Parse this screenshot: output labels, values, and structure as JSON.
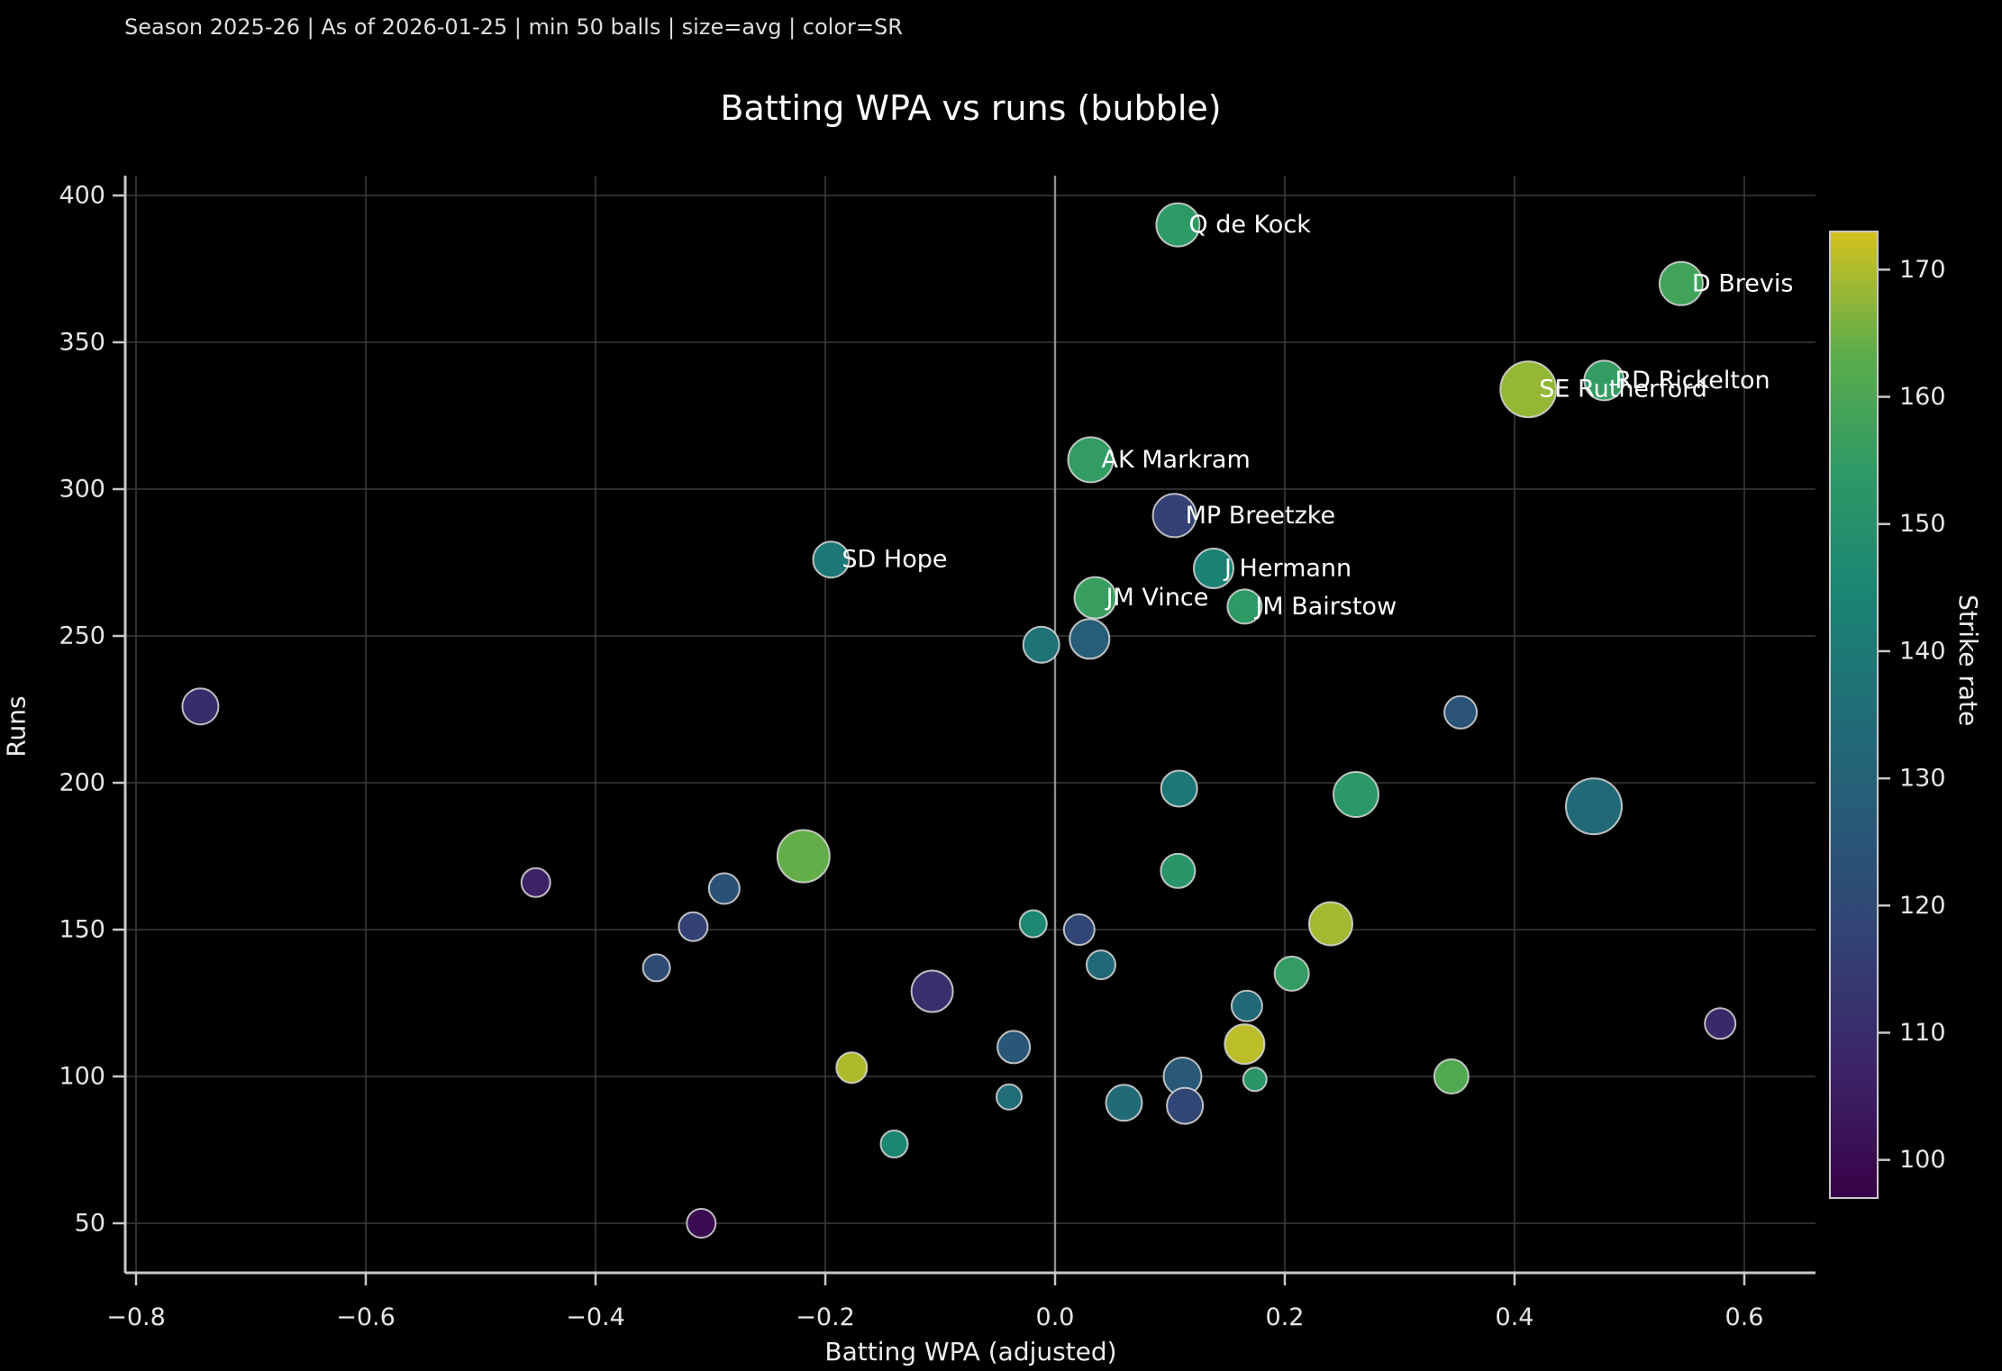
{
  "header": {
    "subtitle": "Season 2025-26 | As of 2026-01-25 | min 50 balls | size=avg | color=SR"
  },
  "chart_data": {
    "type": "scatter",
    "title": "Batting WPA vs runs (bubble)",
    "xlabel": "Batting WPA (adjusted)",
    "ylabel": "Runs",
    "colorbar_label": "Strike rate",
    "legend_position": "right-colorbar",
    "grid": true,
    "xlim": [
      -0.81,
      0.66
    ],
    "ylim": [
      33,
      407
    ],
    "xticks": [
      -0.8,
      -0.6,
      -0.4,
      -0.2,
      0.0,
      0.2,
      0.4,
      0.6
    ],
    "xtick_labels": [
      "−0.8",
      "−0.6",
      "−0.4",
      "−0.2",
      "0.0",
      "0.2",
      "0.4",
      "0.6"
    ],
    "yticks": [
      50,
      100,
      150,
      200,
      250,
      300,
      350,
      400
    ],
    "ytick_labels": [
      "50",
      "100",
      "150",
      "200",
      "250",
      "300",
      "350",
      "400"
    ],
    "color_range": [
      97,
      173
    ],
    "colorbar_ticks": [
      100,
      110,
      120,
      130,
      140,
      150,
      160,
      170
    ],
    "zero_line_x": 0.0,
    "points": [
      {
        "label": "Q de Kock",
        "x": 0.107,
        "y": 390,
        "sr": 154,
        "r": 24
      },
      {
        "label": "D Brevis",
        "x": 0.545,
        "y": 370,
        "sr": 158,
        "r": 24
      },
      {
        "label": "RD Rickelton",
        "x": 0.478,
        "y": 337,
        "sr": 155,
        "r": 22
      },
      {
        "label": "SE Rutherford",
        "x": 0.412,
        "y": 334,
        "sr": 168,
        "r": 31
      },
      {
        "label": "AK Markram",
        "x": 0.031,
        "y": 310,
        "sr": 155,
        "r": 25
      },
      {
        "label": "MP Breetzke",
        "x": 0.104,
        "y": 291,
        "sr": 117,
        "r": 24
      },
      {
        "label": "SD Hope",
        "x": -0.195,
        "y": 276,
        "sr": 139,
        "r": 20
      },
      {
        "label": "J Hermann",
        "x": 0.138,
        "y": 273,
        "sr": 143,
        "r": 22
      },
      {
        "label": "JM Vince",
        "x": 0.035,
        "y": 263,
        "sr": 156,
        "r": 23
      },
      {
        "label": "JM Bairstow",
        "x": 0.165,
        "y": 260,
        "sr": 154,
        "r": 19
      },
      {
        "label": "",
        "x": -0.012,
        "y": 247,
        "sr": 137,
        "r": 20
      },
      {
        "label": "",
        "x": 0.03,
        "y": 249,
        "sr": 128,
        "r": 22
      },
      {
        "label": "",
        "x": 0.108,
        "y": 198,
        "sr": 139,
        "r": 20
      },
      {
        "label": "",
        "x": 0.107,
        "y": 170,
        "sr": 152,
        "r": 19
      },
      {
        "label": "",
        "x": -0.219,
        "y": 175,
        "sr": 164,
        "r": 29
      },
      {
        "label": "",
        "x": -0.744,
        "y": 226,
        "sr": 110,
        "r": 20
      },
      {
        "label": "",
        "x": -0.452,
        "y": 166,
        "sr": 107,
        "r": 16
      },
      {
        "label": "",
        "x": -0.288,
        "y": 164,
        "sr": 123,
        "r": 17
      },
      {
        "label": "",
        "x": -0.315,
        "y": 151,
        "sr": 117,
        "r": 16
      },
      {
        "label": "",
        "x": -0.347,
        "y": 137,
        "sr": 121,
        "r": 15
      },
      {
        "label": "",
        "x": -0.107,
        "y": 129,
        "sr": 111,
        "r": 23
      },
      {
        "label": "",
        "x": -0.177,
        "y": 103,
        "sr": 170,
        "r": 17
      },
      {
        "label": "",
        "x": -0.308,
        "y": 50,
        "sr": 100,
        "r": 16
      },
      {
        "label": "",
        "x": -0.14,
        "y": 77,
        "sr": 145,
        "r": 15
      },
      {
        "label": "",
        "x": -0.036,
        "y": 110,
        "sr": 125,
        "r": 18
      },
      {
        "label": "",
        "x": -0.04,
        "y": 93,
        "sr": 135,
        "r": 14
      },
      {
        "label": "",
        "x": -0.019,
        "y": 152,
        "sr": 146,
        "r": 15
      },
      {
        "label": "",
        "x": 0.021,
        "y": 150,
        "sr": 119,
        "r": 17
      },
      {
        "label": "",
        "x": 0.04,
        "y": 138,
        "sr": 133,
        "r": 16
      },
      {
        "label": "",
        "x": 0.24,
        "y": 152,
        "sr": 169,
        "r": 24
      },
      {
        "label": "",
        "x": 0.206,
        "y": 135,
        "sr": 155,
        "r": 19
      },
      {
        "label": "",
        "x": 0.167,
        "y": 124,
        "sr": 133,
        "r": 17
      },
      {
        "label": "",
        "x": 0.165,
        "y": 111,
        "sr": 171,
        "r": 22
      },
      {
        "label": "",
        "x": 0.174,
        "y": 99,
        "sr": 152,
        "r": 13
      },
      {
        "label": "",
        "x": 0.111,
        "y": 100,
        "sr": 126,
        "r": 21
      },
      {
        "label": "",
        "x": 0.113,
        "y": 90,
        "sr": 119,
        "r": 20
      },
      {
        "label": "",
        "x": 0.06,
        "y": 91,
        "sr": 134,
        "r": 20
      },
      {
        "label": "",
        "x": 0.345,
        "y": 100,
        "sr": 161,
        "r": 19
      },
      {
        "label": "",
        "x": 0.353,
        "y": 224,
        "sr": 124,
        "r": 18
      },
      {
        "label": "",
        "x": 0.262,
        "y": 196,
        "sr": 153,
        "r": 25
      },
      {
        "label": "",
        "x": 0.469,
        "y": 192,
        "sr": 133,
        "r": 31
      },
      {
        "label": "",
        "x": 0.579,
        "y": 118,
        "sr": 109,
        "r": 17
      }
    ]
  }
}
